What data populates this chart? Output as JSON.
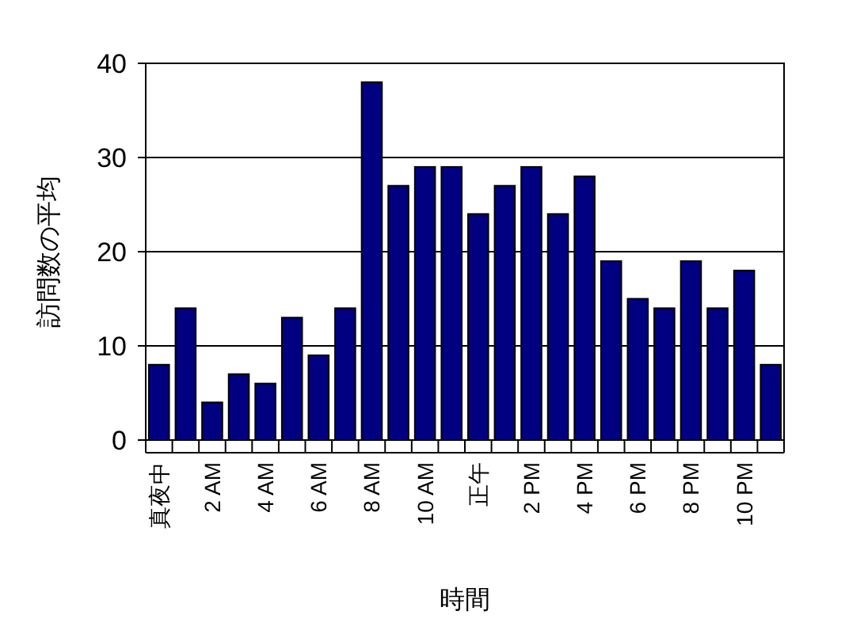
{
  "chart_data": {
    "type": "bar",
    "xlabel": "時間",
    "ylabel": "訪問数の平均",
    "categories": [
      "真夜中",
      null,
      "2 AM",
      null,
      "4 AM",
      null,
      "6 AM",
      null,
      "8 AM",
      null,
      "10 AM",
      null,
      "正午",
      null,
      "2 PM",
      null,
      "4 PM",
      null,
      "6 PM",
      null,
      "8 PM",
      null,
      "10 PM",
      null
    ],
    "values": [
      8,
      14,
      4,
      7,
      6,
      13,
      9,
      14,
      38,
      27,
      29,
      29,
      24,
      27,
      29,
      24,
      28,
      19,
      15,
      14,
      19,
      14,
      18,
      8
    ],
    "color": "#000080",
    "ylim": [
      0,
      40
    ],
    "yticks": [
      0,
      10,
      20,
      30,
      40
    ],
    "grid": "y"
  }
}
